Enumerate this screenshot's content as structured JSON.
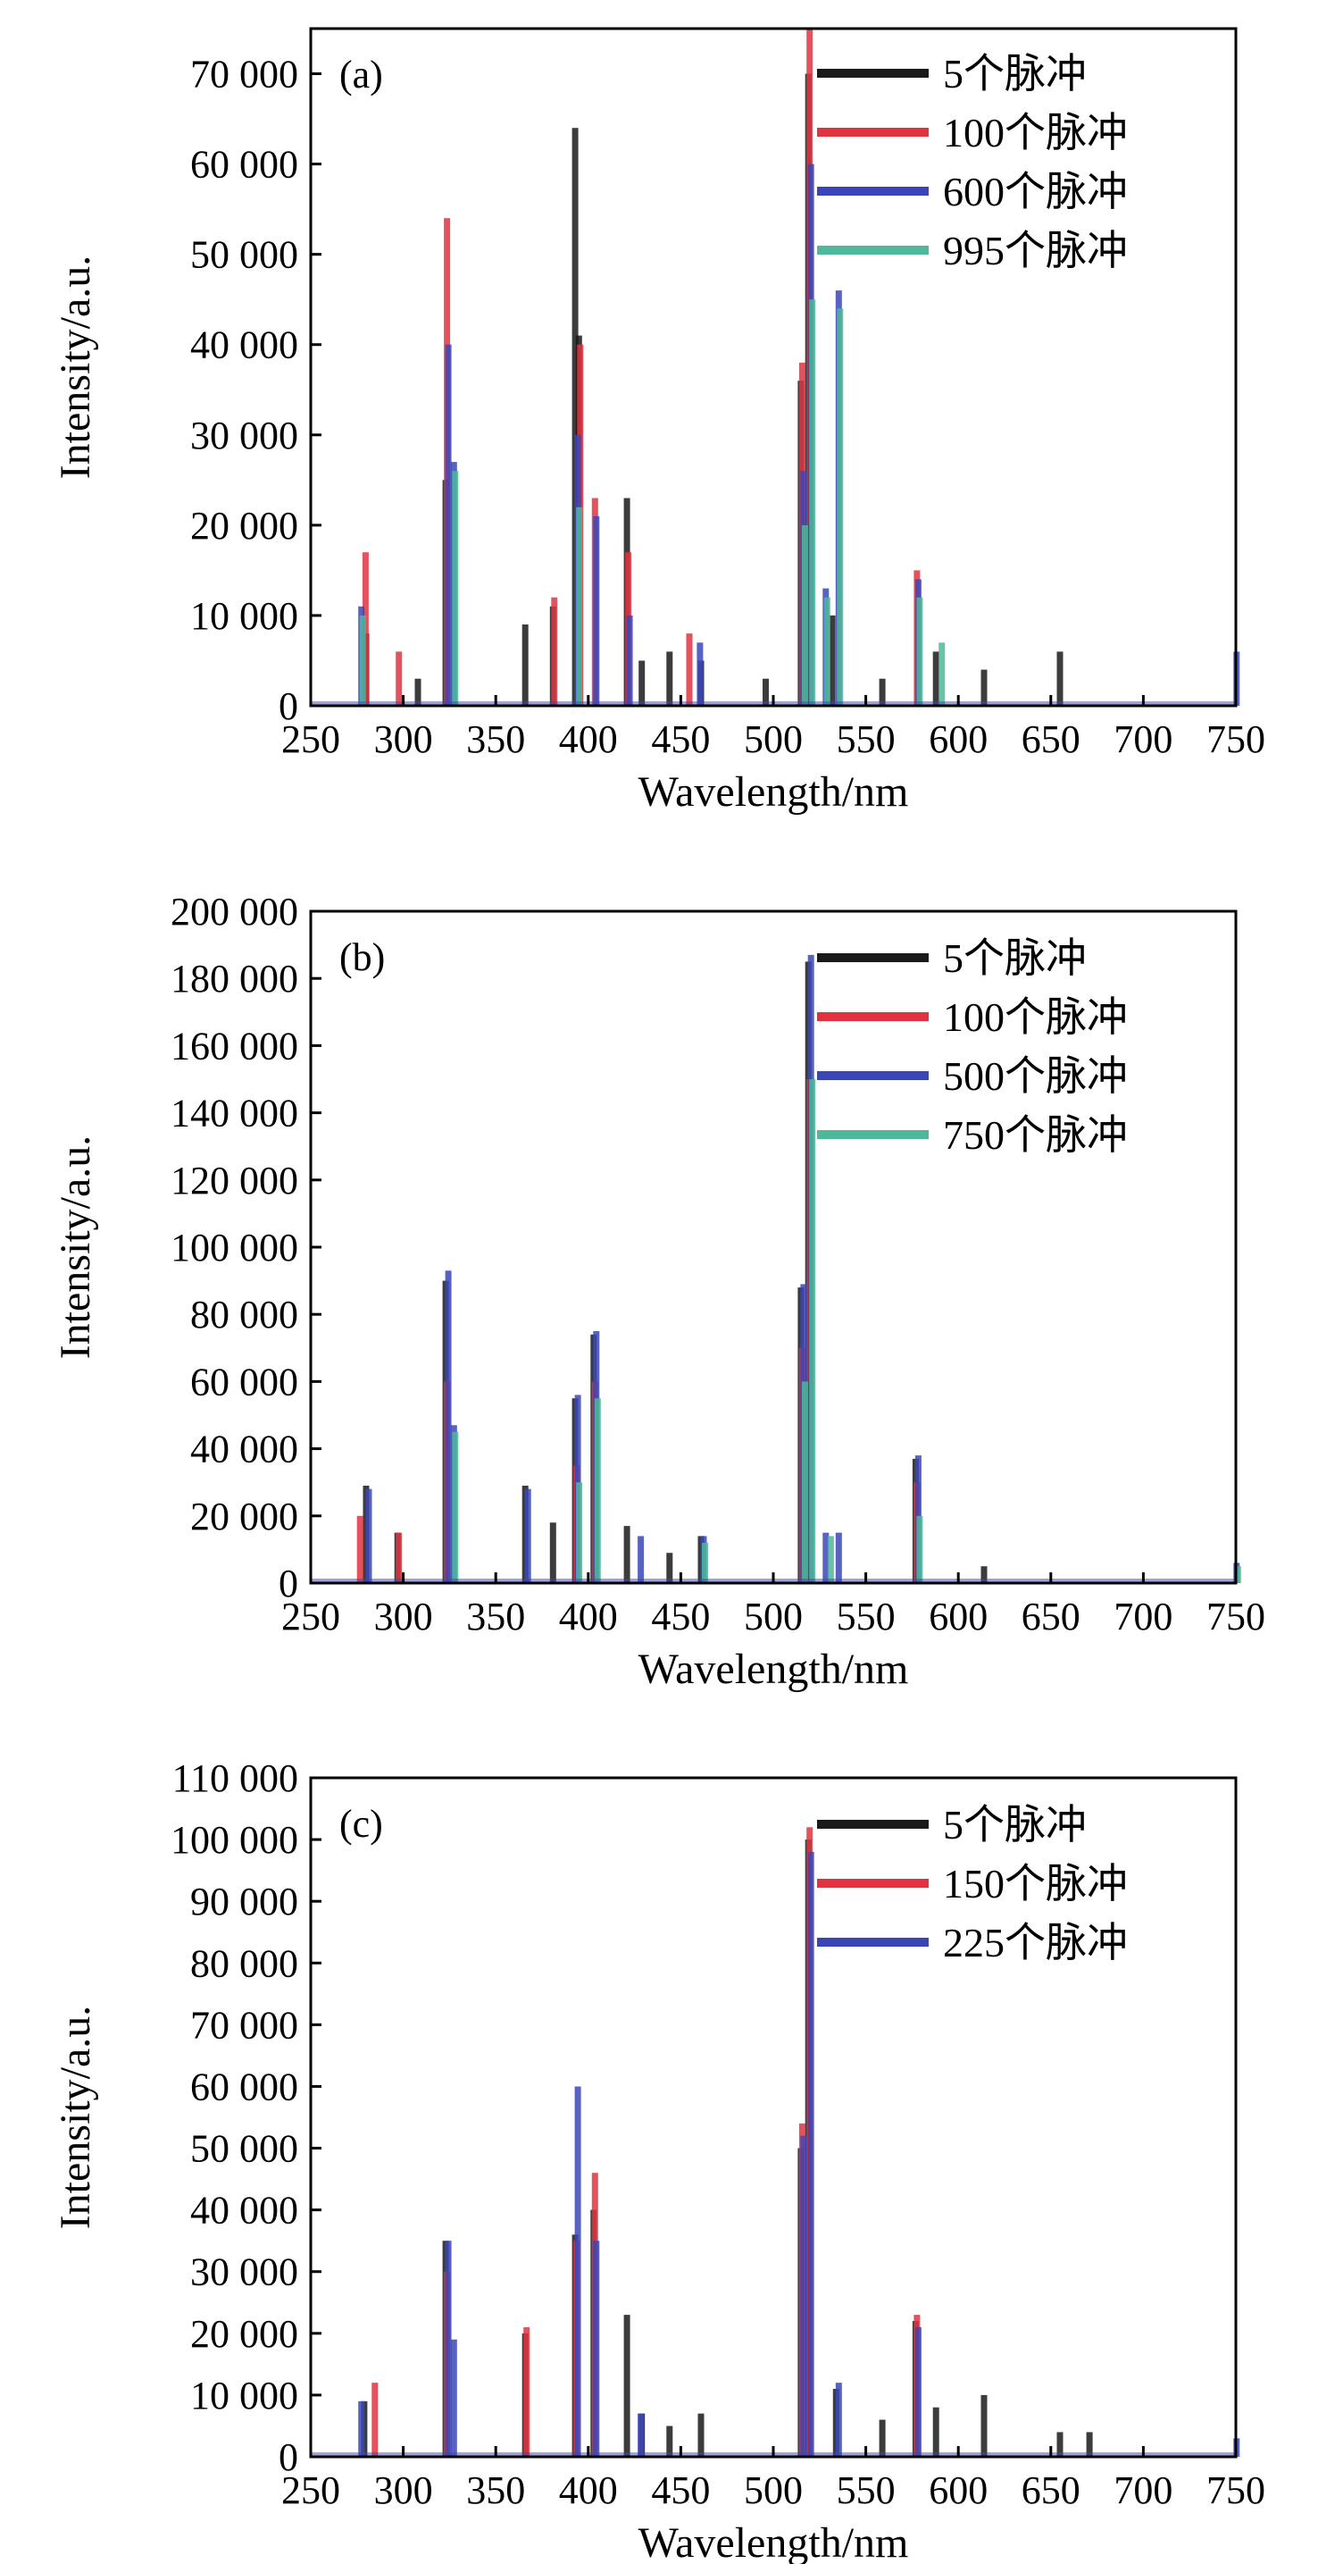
{
  "colors": {
    "s1": "#1a1a1a",
    "s2": "#e0323f",
    "s3": "#3a46b8",
    "s4": "#4db89a",
    "axis": "#000000"
  },
  "chart_data": [
    {
      "type": "bar",
      "panel_label": "(a)",
      "xlabel": "Wavelength/nm",
      "ylabel": "Intensity/a.u.",
      "xlim": [
        250,
        750
      ],
      "ylim": [
        0,
        75000
      ],
      "xticks": [
        250,
        300,
        350,
        400,
        450,
        500,
        550,
        600,
        650,
        700,
        750
      ],
      "xtick_labels": [
        "250",
        "300",
        "350",
        "400",
        "450",
        "500",
        "550",
        "600",
        "650",
        "700",
        "750"
      ],
      "yticks": [
        0,
        10000,
        20000,
        30000,
        40000,
        50000,
        60000,
        70000
      ],
      "ytick_labels": [
        "0",
        "10 000",
        "20 000",
        "30 000",
        "40 000",
        "50 000",
        "60 000",
        "70 000"
      ],
      "legend_position": "top-right",
      "series": [
        {
          "name": "5个脉冲",
          "color_key": "s1",
          "points": [
            [
              281,
              8000
            ],
            [
              309,
              3000
            ],
            [
              324,
              25000
            ],
            [
              367,
              9000
            ],
            [
              382,
              11000
            ],
            [
              394,
              64000
            ],
            [
              396,
              41000
            ],
            [
              422,
              23000
            ],
            [
              430,
              5000
            ],
            [
              445,
              6000
            ],
            [
              462,
              5000
            ],
            [
              497,
              3000
            ],
            [
              516,
              36000
            ],
            [
              520,
              70000
            ],
            [
              533,
              10000
            ],
            [
              560,
              3000
            ],
            [
              589,
              6000
            ],
            [
              615,
              4000
            ],
            [
              656,
              6000
            ]
          ]
        },
        {
          "name": "100个脉冲",
          "color_key": "s2",
          "points": [
            [
              280,
              17000
            ],
            [
              298,
              6000
            ],
            [
              324,
              54000
            ],
            [
              382,
              12000
            ],
            [
              396,
              40000
            ],
            [
              404,
              23000
            ],
            [
              422,
              17000
            ],
            [
              455,
              8000
            ],
            [
              516,
              38000
            ],
            [
              520,
              75000
            ],
            [
              578,
              15000
            ]
          ]
        },
        {
          "name": "600个脉冲",
          "color_key": "s3",
          "points": [
            [
              277,
              11000
            ],
            [
              324,
              40000
            ],
            [
              327,
              27000
            ],
            [
              394,
              30000
            ],
            [
              404,
              21000
            ],
            [
              422,
              10000
            ],
            [
              460,
              7000
            ],
            [
              516,
              26000
            ],
            [
              520,
              60000
            ],
            [
              528,
              13000
            ],
            [
              535,
              46000
            ],
            [
              578,
              14000
            ],
            [
              750,
              6000
            ]
          ]
        },
        {
          "name": "995个脉冲",
          "color_key": "s4",
          "points": [
            [
              277,
              10000
            ],
            [
              327,
              26000
            ],
            [
              394,
              22000
            ],
            [
              516,
              20000
            ],
            [
              520,
              45000
            ],
            [
              528,
              12000
            ],
            [
              535,
              44000
            ],
            [
              578,
              12000
            ],
            [
              590,
              7000
            ]
          ]
        }
      ]
    },
    {
      "type": "bar",
      "panel_label": "(b)",
      "xlabel": "Wavelength/nm",
      "ylabel": "Intensity/a.u.",
      "xlim": [
        250,
        750
      ],
      "ylim": [
        0,
        200000
      ],
      "xticks": [
        250,
        300,
        350,
        400,
        450,
        500,
        550,
        600,
        650,
        700,
        750
      ],
      "xtick_labels": [
        "250",
        "300",
        "350",
        "400",
        "450",
        "500",
        "550",
        "600",
        "650",
        "700",
        "750"
      ],
      "yticks": [
        0,
        20000,
        40000,
        60000,
        80000,
        100000,
        120000,
        140000,
        160000,
        180000,
        200000
      ],
      "ytick_labels": [
        "0",
        "20 000",
        "40 000",
        "60 000",
        "80 000",
        "100 000",
        "120 000",
        "140 000",
        "160 000",
        "180 000",
        "200 000"
      ],
      "legend_position": "top-right",
      "series": [
        {
          "name": "5个脉冲",
          "color_key": "s1",
          "points": [
            [
              281,
              29000
            ],
            [
              298,
              15000
            ],
            [
              324,
              90000
            ],
            [
              367,
              29000
            ],
            [
              382,
              18000
            ],
            [
              394,
              55000
            ],
            [
              404,
              74000
            ],
            [
              422,
              17000
            ],
            [
              445,
              9000
            ],
            [
              462,
              14000
            ],
            [
              516,
              88000
            ],
            [
              520,
              185000
            ],
            [
              578,
              37000
            ],
            [
              615,
              5000
            ]
          ]
        },
        {
          "name": "100个脉冲",
          "color_key": "s2",
          "points": [
            [
              277,
              20000
            ],
            [
              298,
              15000
            ],
            [
              324,
              60000
            ],
            [
              394,
              35000
            ],
            [
              404,
              60000
            ],
            [
              516,
              70000
            ],
            [
              520,
              150000
            ],
            [
              578,
              30000
            ]
          ]
        },
        {
          "name": "500个脉冲",
          "color_key": "s3",
          "points": [
            [
              281,
              28000
            ],
            [
              324,
              93000
            ],
            [
              327,
              47000
            ],
            [
              367,
              28000
            ],
            [
              394,
              56000
            ],
            [
              404,
              75000
            ],
            [
              428,
              14000
            ],
            [
              462,
              14000
            ],
            [
              516,
              89000
            ],
            [
              520,
              187000
            ],
            [
              528,
              15000
            ],
            [
              535,
              15000
            ],
            [
              578,
              38000
            ],
            [
              750,
              6000
            ]
          ]
        },
        {
          "name": "750个脉冲",
          "color_key": "s4",
          "points": [
            [
              327,
              45000
            ],
            [
              394,
              30000
            ],
            [
              404,
              55000
            ],
            [
              462,
              12000
            ],
            [
              516,
              60000
            ],
            [
              520,
              150000
            ],
            [
              530,
              14000
            ],
            [
              578,
              20000
            ],
            [
              750,
              5000
            ]
          ]
        }
      ]
    },
    {
      "type": "bar",
      "panel_label": "(c)",
      "xlabel": "Wavelength/nm",
      "ylabel": "Intensity/a.u.",
      "xlim": [
        250,
        750
      ],
      "ylim": [
        0,
        110000
      ],
      "xticks": [
        250,
        300,
        350,
        400,
        450,
        500,
        550,
        600,
        650,
        700,
        750
      ],
      "xtick_labels": [
        "250",
        "300",
        "350",
        "400",
        "450",
        "500",
        "550",
        "600",
        "650",
        "700",
        "750"
      ],
      "yticks": [
        0,
        10000,
        20000,
        30000,
        40000,
        50000,
        60000,
        70000,
        80000,
        90000,
        100000,
        110000
      ],
      "ytick_labels": [
        "0",
        "10 000",
        "20 000",
        "30 000",
        "40 000",
        "50 000",
        "60 000",
        "70 000",
        "80 000",
        "90 000",
        "100 000",
        "110 000"
      ],
      "legend_position": "top-right",
      "series": [
        {
          "name": "5个脉冲",
          "color_key": "s1",
          "points": [
            [
              280,
              9000
            ],
            [
              324,
              35000
            ],
            [
              367,
              20000
            ],
            [
              394,
              36000
            ],
            [
              404,
              40000
            ],
            [
              422,
              23000
            ],
            [
              430,
              7000
            ],
            [
              445,
              5000
            ],
            [
              462,
              7000
            ],
            [
              516,
              50000
            ],
            [
              520,
              100000
            ],
            [
              535,
              11000
            ],
            [
              560,
              6000
            ],
            [
              578,
              22000
            ],
            [
              589,
              8000
            ],
            [
              615,
              10000
            ],
            [
              656,
              4000
            ],
            [
              672,
              4000
            ]
          ]
        },
        {
          "name": "150个脉冲",
          "color_key": "s2",
          "points": [
            [
              285,
              12000
            ],
            [
              324,
              30000
            ],
            [
              367,
              21000
            ],
            [
              394,
              35000
            ],
            [
              404,
              46000
            ],
            [
              516,
              54000
            ],
            [
              520,
              102000
            ],
            [
              578,
              23000
            ]
          ]
        },
        {
          "name": "225个脉冲",
          "color_key": "s3",
          "points": [
            [
              277,
              9000
            ],
            [
              324,
              35000
            ],
            [
              327,
              19000
            ],
            [
              394,
              60000
            ],
            [
              404,
              35000
            ],
            [
              428,
              7000
            ],
            [
              516,
              52000
            ],
            [
              520,
              98000
            ],
            [
              535,
              12000
            ],
            [
              578,
              21000
            ],
            [
              750,
              3000
            ]
          ]
        }
      ]
    }
  ]
}
